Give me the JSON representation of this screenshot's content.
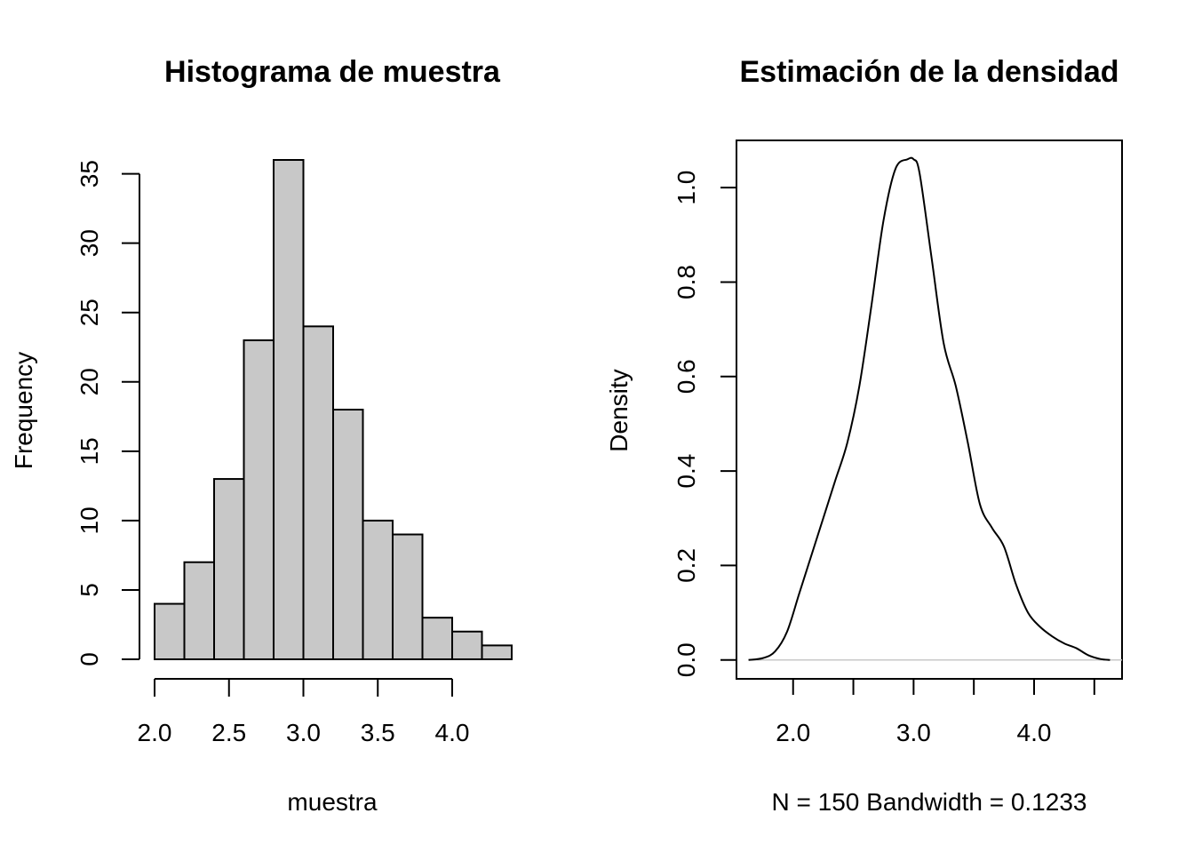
{
  "chart_data": [
    {
      "type": "bar",
      "title": "Histograma de muestra",
      "xlabel": "muestra",
      "ylabel": "Frequency",
      "bin_edges": [
        2.0,
        2.2,
        2.4,
        2.6,
        2.8,
        3.0,
        3.2,
        3.4,
        3.6,
        3.8,
        4.0,
        4.2,
        4.4
      ],
      "values": [
        4,
        7,
        13,
        23,
        36,
        24,
        18,
        10,
        9,
        3,
        2,
        1
      ],
      "xlim": [
        2.0,
        4.4
      ],
      "ylim": [
        0,
        36
      ],
      "x_ticks": [
        2.0,
        2.5,
        3.0,
        3.5,
        4.0
      ],
      "x_tick_labels": [
        "2.0",
        "2.5",
        "3.0",
        "3.5",
        "4.0"
      ],
      "y_ticks": [
        0,
        5,
        10,
        15,
        20,
        25,
        30,
        35
      ],
      "y_tick_labels": [
        "0",
        "5",
        "10",
        "15",
        "20",
        "25",
        "30",
        "35"
      ],
      "grid": false,
      "bar_color": "#c8c8c8"
    },
    {
      "type": "line",
      "title": "Estimación de la densidad",
      "xlabel": "N = 150   Bandwidth = 0.1233",
      "ylabel": "Density",
      "x": [
        1.63,
        1.75,
        1.85,
        1.95,
        2.05,
        2.15,
        2.25,
        2.35,
        2.45,
        2.55,
        2.65,
        2.75,
        2.85,
        2.95,
        3.0,
        3.05,
        3.15,
        3.25,
        3.35,
        3.45,
        3.55,
        3.65,
        3.75,
        3.85,
        3.95,
        4.05,
        4.15,
        4.25,
        4.35,
        4.45,
        4.55,
        4.63
      ],
      "y": [
        0.0,
        0.004,
        0.018,
        0.06,
        0.14,
        0.22,
        0.3,
        0.38,
        0.46,
        0.58,
        0.75,
        0.93,
        1.04,
        1.06,
        1.06,
        1.03,
        0.85,
        0.67,
        0.58,
        0.46,
        0.33,
        0.28,
        0.24,
        0.16,
        0.1,
        0.07,
        0.05,
        0.035,
        0.025,
        0.01,
        0.002,
        0.0
      ],
      "xlim": [
        1.53,
        4.73
      ],
      "ylim": [
        -0.04,
        1.1
      ],
      "x_ticks": [
        1.5,
        2.0,
        2.5,
        3.0,
        3.5,
        4.0,
        4.5
      ],
      "x_tick_labels": [
        "",
        "2.0",
        "",
        "3.0",
        "",
        "4.0",
        ""
      ],
      "y_ticks": [
        0.0,
        0.2,
        0.4,
        0.6,
        0.8,
        1.0
      ],
      "y_tick_labels": [
        "0.0",
        "0.2",
        "0.4",
        "0.6",
        "0.8",
        "1.0"
      ],
      "grid": false,
      "baseline_color": "#c8c8c8"
    }
  ]
}
